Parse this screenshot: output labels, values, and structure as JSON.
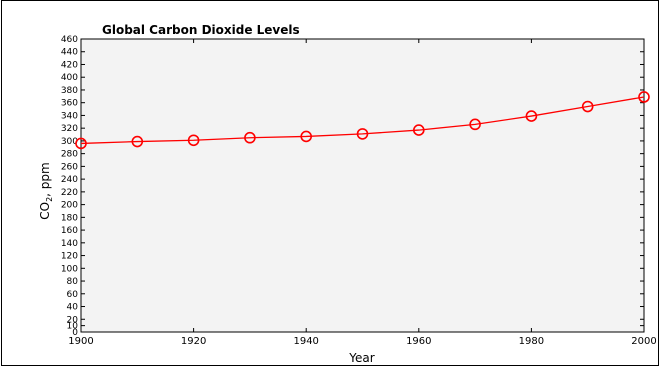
{
  "chart_data": {
    "type": "line",
    "title": "Global Carbon Dioxide Levels",
    "xlabel": "Year",
    "ylabel_main": "CO",
    "ylabel_sub": "2",
    "ylabel_unit": "ppm",
    "xlim": [
      1900,
      2000
    ],
    "ylim": [
      0,
      460
    ],
    "xticks": [
      1900,
      1920,
      1940,
      1960,
      1980,
      2000
    ],
    "yticks": [
      0,
      10,
      20,
      40,
      60,
      80,
      100,
      120,
      140,
      160,
      180,
      200,
      220,
      240,
      260,
      280,
      300,
      320,
      340,
      360,
      380,
      400,
      420,
      440,
      460
    ],
    "grid": false,
    "series": [
      {
        "color": "#ff0000",
        "x": [
          1900,
          1910,
          1920,
          1930,
          1940,
          1950,
          1960,
          1970,
          1980,
          1990,
          2000
        ],
        "y": [
          296,
          299,
          301,
          305,
          307,
          311,
          317,
          326,
          339,
          354,
          369
        ]
      }
    ]
  }
}
